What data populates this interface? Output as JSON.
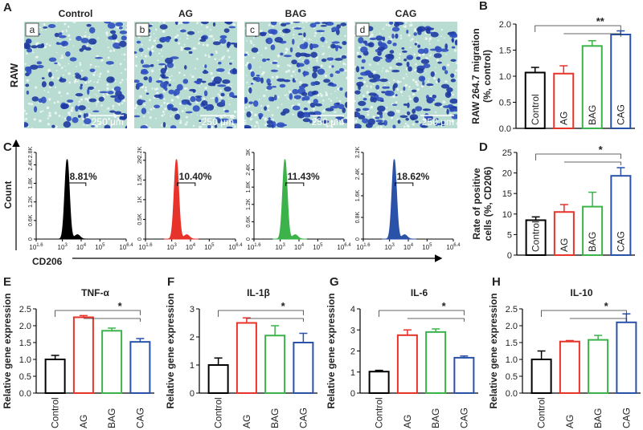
{
  "micrographs": {
    "panel": "A",
    "row_label": "RAW",
    "items": [
      {
        "title": "Control",
        "tag": "a",
        "scale": "250 μm"
      },
      {
        "title": "AG",
        "tag": "b",
        "scale": "250 μm"
      },
      {
        "title": "BAG",
        "tag": "c",
        "scale": "250 μm"
      },
      {
        "title": "CAG",
        "tag": "d",
        "scale": "250 μm"
      }
    ]
  },
  "flow_axes": {
    "panel": "C",
    "ylabel": "Count",
    "xlabel": "CD206"
  },
  "chart_data": [
    {
      "type": "flow",
      "color": "#000000",
      "values": [
        8.81
      ],
      "value_labels": [
        "8.81%"
      ],
      "xlim": [
        1.6,
        6.4
      ],
      "xticks": [
        {
          "value": 1.6,
          "label": "10"
        },
        {
          "value": 3,
          "label": "10"
        },
        {
          "value": 4,
          "label": "10"
        },
        {
          "value": 5,
          "label": "10"
        },
        {
          "value": 6.4,
          "label": "10"
        }
      ],
      "ylim": [
        0,
        2800
      ],
      "yticks": [
        0,
        {
          "value": 600,
          "label": "0.6K"
        },
        {
          "value": 1200,
          "label": "1.2K"
        },
        {
          "value": 1800,
          "label": "1.8K"
        },
        {
          "value": 2400,
          "label": "2.4K"
        },
        {
          "value": 2800,
          "label": "2.8K"
        }
      ]
    },
    {
      "type": "flow",
      "color": "#e8332a",
      "values": [
        10.4
      ],
      "value_labels": [
        "10.40%"
      ],
      "xlim": [
        1.6,
        6.4
      ],
      "xticks": [
        {
          "value": 1.6,
          "label": "10"
        },
        {
          "value": 3,
          "label": "10"
        },
        {
          "value": 4,
          "label": "10"
        },
        {
          "value": 5,
          "label": "10"
        },
        {
          "value": 6.4,
          "label": "10"
        }
      ],
      "ylim": [
        0,
        2200
      ],
      "yticks": [
        0,
        {
          "value": 500,
          "label": "0.5K"
        },
        {
          "value": 1000,
          "label": "1K"
        },
        {
          "value": 1500,
          "label": "1.5K"
        },
        {
          "value": 2000,
          "label": "2K"
        },
        {
          "value": 2200,
          "label": "2.2K"
        }
      ]
    },
    {
      "type": "flow",
      "color": "#3cb34a",
      "values": [
        11.43
      ],
      "value_labels": [
        "11.43%"
      ],
      "xlim": [
        1.6,
        6.4
      ],
      "xticks": [
        {
          "value": 1.6,
          "label": "10"
        },
        {
          "value": 3,
          "label": "10"
        },
        {
          "value": 4,
          "label": "10"
        },
        {
          "value": 5,
          "label": "10"
        },
        {
          "value": 6.4,
          "label": "10"
        }
      ],
      "ylim": [
        0,
        3000
      ],
      "yticks": [
        0,
        {
          "value": 600,
          "label": "0.6K"
        },
        {
          "value": 1200,
          "label": "1.2K"
        },
        {
          "value": 1800,
          "label": "1.8K"
        },
        {
          "value": 2400,
          "label": "2.4K"
        },
        {
          "value": 3000,
          "label": "3K"
        }
      ]
    },
    {
      "type": "flow",
      "color": "#2a52a8",
      "values": [
        18.62
      ],
      "value_labels": [
        "18.62%"
      ],
      "xlim": [
        1.6,
        6.4
      ],
      "xticks": [
        {
          "value": 1.6,
          "label": "10"
        },
        {
          "value": 3,
          "label": "10"
        },
        {
          "value": 4,
          "label": "10"
        },
        {
          "value": 5,
          "label": "10"
        },
        {
          "value": 6.4,
          "label": "10"
        }
      ],
      "ylim": [
        0,
        3200
      ],
      "yticks": [
        0,
        {
          "value": 800,
          "label": "0.8K"
        },
        {
          "value": 1600,
          "label": "1.6K"
        },
        {
          "value": 2400,
          "label": "2.4K"
        },
        {
          "value": 3200,
          "label": "3.2K"
        }
      ]
    },
    {
      "type": "bar",
      "panel": "B",
      "ylabel": [
        "RAW 264.7 migration",
        "(%, control)"
      ],
      "significance": "**",
      "categories": [
        "Control",
        "AG",
        "BAG",
        "CAG"
      ],
      "values": [
        1.07,
        1.05,
        1.58,
        1.8
      ],
      "errors": [
        0.1,
        0.15,
        0.1,
        0.07
      ],
      "colors": [
        "#000000",
        "#e8332a",
        "#3cb34a",
        "#2a52a8"
      ],
      "ylim": [
        0,
        2.0
      ],
      "yticks": [
        {
          "value": 0,
          "label": "0.0"
        },
        0.5,
        {
          "value": 1,
          "label": "1.0"
        },
        1.5,
        {
          "value": 2,
          "label": "2.0"
        }
      ]
    },
    {
      "type": "bar",
      "panel": "D",
      "ylabel": [
        "Rate of positive",
        "cells (%, CD206)"
      ],
      "significance": "*",
      "categories": [
        "Control",
        "AG",
        "BAG",
        "CAG"
      ],
      "values": [
        8.5,
        10.5,
        11.8,
        19.3
      ],
      "errors": [
        0.8,
        1.8,
        3.5,
        2
      ],
      "colors": [
        "#000000",
        "#e8332a",
        "#3cb34a",
        "#2a52a8"
      ],
      "ylim": [
        0,
        25
      ],
      "yticks": [
        0,
        5,
        10,
        15,
        20,
        25
      ]
    },
    {
      "type": "bar",
      "panel": "E",
      "title": "TNF-α",
      "ylabel": [
        "Relative gene expression"
      ],
      "significance": "*",
      "categories": [
        "Control",
        "AG",
        "BAG",
        "CAG"
      ],
      "values": [
        1.0,
        2.25,
        1.85,
        1.52
      ],
      "errors": [
        0.12,
        0.05,
        0.08,
        0.1
      ],
      "colors": [
        "#000000",
        "#e8332a",
        "#3cb34a",
        "#2a52a8"
      ],
      "ylim": [
        0,
        2.5
      ],
      "yticks": [
        {
          "value": 0,
          "label": "0.0"
        },
        0.5,
        {
          "value": 1,
          "label": "1.0"
        },
        1.5,
        {
          "value": 2,
          "label": "2.0"
        },
        2.5
      ]
    },
    {
      "type": "bar",
      "panel": "F",
      "title": "IL-1β",
      "ylabel": [
        "Relative gene expression"
      ],
      "significance": "*",
      "categories": [
        "Control",
        "AG",
        "BAG",
        "CAG"
      ],
      "values": [
        1.0,
        2.5,
        2.05,
        1.8
      ],
      "errors": [
        0.25,
        0.18,
        0.35,
        0.33
      ],
      "colors": [
        "#000000",
        "#e8332a",
        "#3cb34a",
        "#2a52a8"
      ],
      "ylim": [
        0,
        3
      ],
      "yticks": [
        0,
        1,
        2,
        3
      ]
    },
    {
      "type": "bar",
      "panel": "G",
      "title": "IL-6",
      "ylabel": [
        "Relative gene expression"
      ],
      "significance": "*",
      "categories": [
        "Control",
        "AG",
        "BAG",
        "CAG"
      ],
      "values": [
        1.02,
        2.75,
        2.9,
        1.68
      ],
      "errors": [
        0.06,
        0.25,
        0.15,
        0.08
      ],
      "colors": [
        "#000000",
        "#e8332a",
        "#3cb34a",
        "#2a52a8"
      ],
      "ylim": [
        0,
        4
      ],
      "yticks": [
        0,
        1,
        2,
        3,
        4
      ]
    },
    {
      "type": "bar",
      "panel": "H",
      "title": "IL-10",
      "ylabel": [
        "Relative gene expression"
      ],
      "significance": "*",
      "categories": [
        "Control",
        "AG",
        "BAG",
        "CAG"
      ],
      "values": [
        1.0,
        1.53,
        1.58,
        2.1
      ],
      "errors": [
        0.25,
        0.03,
        0.13,
        0.25
      ],
      "colors": [
        "#000000",
        "#e8332a",
        "#3cb34a",
        "#2a52a8"
      ],
      "ylim": [
        0,
        2.5
      ],
      "yticks": [
        {
          "value": 0,
          "label": "0.0"
        },
        0.5,
        {
          "value": 1,
          "label": "1.0"
        },
        1.5,
        {
          "value": 2,
          "label": "2.0"
        },
        2.5
      ]
    }
  ]
}
